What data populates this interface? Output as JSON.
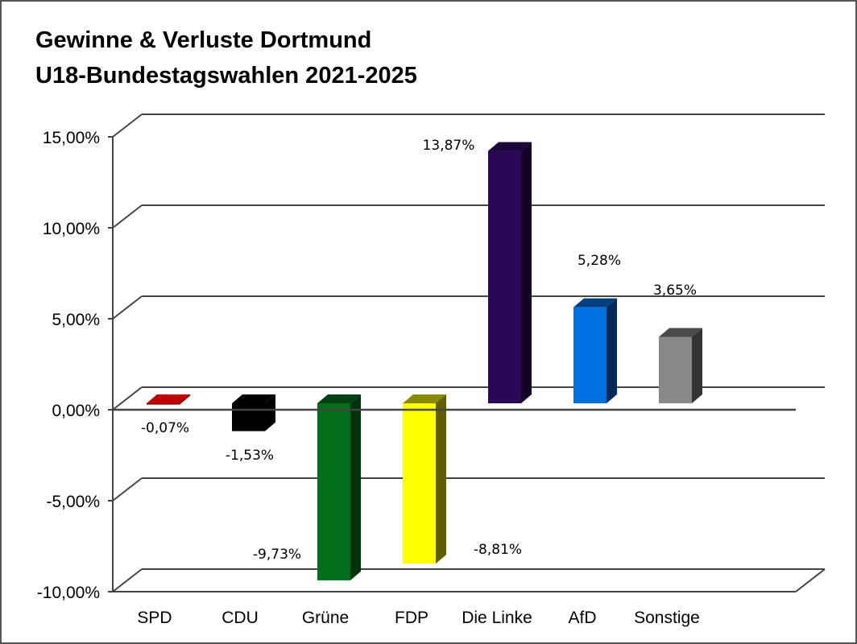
{
  "chart_data": {
    "type": "bar",
    "title": [
      "Gewinne & Verluste Dortmund",
      "U18-Bundestagswahlen 2021-2025"
    ],
    "xlabel": "",
    "ylabel": "",
    "ylim": [
      -10,
      15
    ],
    "yticks": [
      15,
      10,
      5,
      0,
      -5,
      -10
    ],
    "ytick_labels": [
      "15,00%",
      "10,00%",
      "5,00%",
      "0,00%",
      "-5,00%",
      "-10,00%"
    ],
    "grid": true,
    "style": "3d-column",
    "legend": "none",
    "categories": [
      "SPD",
      "CDU",
      "Grüne",
      "FDP",
      "Die Linke",
      "AfD",
      "Sonstige"
    ],
    "values": [
      -0.07,
      -1.53,
      -9.73,
      -8.81,
      13.87,
      5.28,
      3.65
    ],
    "data_labels": [
      "-0,07%",
      "-1,53%",
      "-9,73%",
      "-8,81%",
      "13,87%",
      "5,28%",
      "3,65%"
    ],
    "colors": [
      {
        "front": "#8B0000",
        "side": "#5a0000",
        "top": "#c00000"
      },
      {
        "front": "#000000",
        "side": "#000000",
        "top": "#000000"
      },
      {
        "front": "#006E1A",
        "side": "#00320C",
        "top": "#004012"
      },
      {
        "front": "#FFFF00",
        "side": "#5f5f00",
        "top": "#8a8a00"
      },
      {
        "front": "#2A0855",
        "side": "#140328",
        "top": "#1c0539"
      },
      {
        "front": "#0070E0",
        "side": "#002A55",
        "top": "#00407F"
      },
      {
        "front": "#888888",
        "side": "#333333",
        "top": "#4a4a4a"
      }
    ]
  }
}
